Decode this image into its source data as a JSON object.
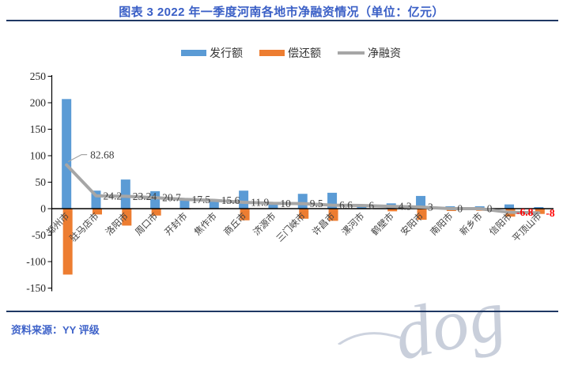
{
  "title": "图表 3 2022 年一季度河南各地市净融资情况（单位：亿元）",
  "source": "资料来源：YY 评级",
  "watermark": "dog",
  "colors": {
    "title_blue": "#3A5FC6",
    "rule_navy": "#1F3864",
    "bar_issue": "#5B9BD5",
    "bar_repay": "#ED7D31",
    "line_net": "#A6A6A6",
    "label_gray": "#3F3F3F",
    "label_negative_red": "#FF0000",
    "source_blue": "#3F63C9",
    "watermark_gray": "#C9CFDB",
    "axis_black": "#000000"
  },
  "legend": [
    {
      "name": "发行额",
      "type": "bar",
      "color": "#5B9BD5"
    },
    {
      "name": "偿还额",
      "type": "bar",
      "color": "#ED7D31"
    },
    {
      "name": "净融资",
      "type": "line",
      "color": "#A6A6A6"
    }
  ],
  "chart_data": {
    "type": "combo-bar-line",
    "categories": [
      "郑州市",
      "驻马店市",
      "洛阳市",
      "周口市",
      "开封市",
      "焦作市",
      "商丘市",
      "济源市",
      "三门峡市",
      "许昌市",
      "漯河市",
      "鹤壁市",
      "安阳市",
      "南阳市",
      "新乡市",
      "信阳市",
      "平顶山市"
    ],
    "series": [
      {
        "name": "发行额",
        "type": "bar",
        "color": "#5B9BD5",
        "values": [
          207,
          34,
          55,
          33,
          18,
          16,
          34,
          10,
          28,
          30,
          6,
          10,
          24,
          4.5,
          4.5,
          8,
          3
        ]
      },
      {
        "name": "偿还额",
        "type": "bar",
        "color": "#ED7D31",
        "values": [
          -124.5,
          -11,
          -32,
          -13,
          -1.5,
          0,
          -22,
          0,
          -19,
          -23,
          0,
          -5,
          -21,
          -4.5,
          -4,
          -15,
          -10
        ]
      },
      {
        "name": "净融资",
        "type": "line",
        "color": "#A6A6A6",
        "values": [
          82.68,
          24.2,
          23.24,
          20.7,
          17.5,
          15.6,
          11.9,
          10,
          9.5,
          6.6,
          6,
          4.3,
          3,
          0,
          0,
          -6.8,
          -8
        ],
        "labels": [
          "82.68",
          "24.2",
          "23.24",
          "20.7",
          "17.5",
          "15.6",
          "11.9",
          "10",
          "9.5",
          "6.6",
          "6",
          "4.3",
          "3",
          "0",
          "0",
          "-6.8",
          "-8"
        ]
      }
    ],
    "ylim": [
      -150,
      250
    ],
    "ytick_step": 50,
    "grid": false,
    "legend_position": "top"
  }
}
